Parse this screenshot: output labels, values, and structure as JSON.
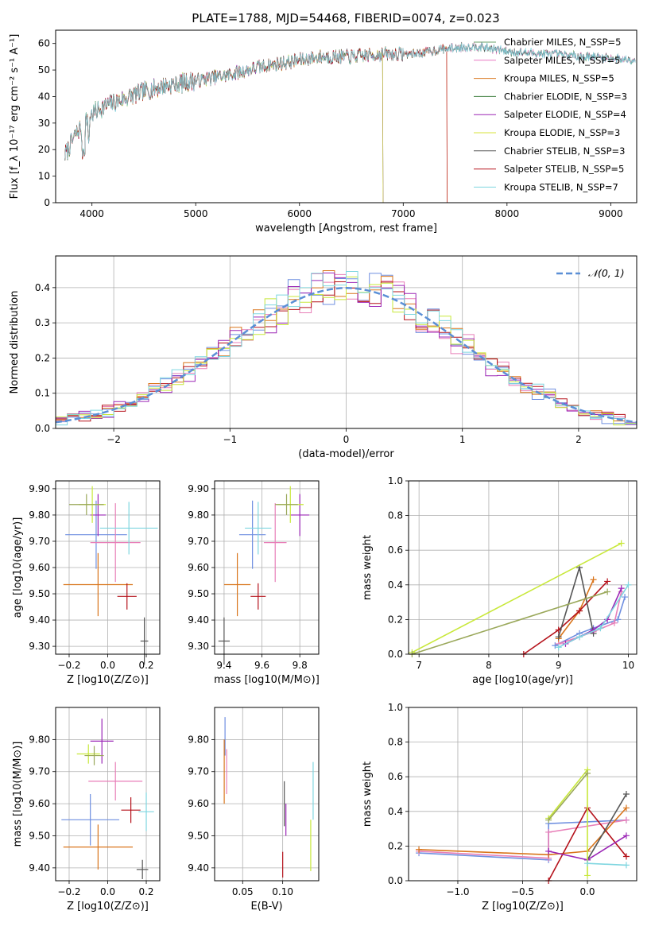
{
  "figure": {
    "title": "PLATE=1788, MJD=54468, FIBERID=0074, z=0.023"
  },
  "colors": {
    "grid": "#b0b0b0",
    "dashed_fit": "#5b8fd6",
    "series": [
      "#6aa26a",
      "#e879c2",
      "#d9751c",
      "#3f7f3f",
      "#9b26b6",
      "#d7e33a",
      "#555555",
      "#b5121b",
      "#7fd6e0"
    ],
    "range_markers": [
      "#6f8fe0",
      "#e87fb8",
      "#d9751c",
      "#b5121b",
      "#555555",
      "#9b26b6",
      "#c8e83a",
      "#7fd6e0",
      "#9aa85a"
    ]
  },
  "chart_data": [
    {
      "id": "spectrum",
      "type": "line",
      "title": "PLATE=1788, MJD=54468, FIBERID=0074, z=0.023",
      "xlabel": "wavelength [Angstrom, rest frame]",
      "ylabel": "Flux [f_λ 10⁻¹⁷ erg cm⁻² s⁻¹ A⁻¹]",
      "xlim": [
        3650,
        9250
      ],
      "ylim": [
        0,
        65
      ],
      "xticks": [
        4000,
        5000,
        6000,
        7000,
        8000,
        9000
      ],
      "yticks": [
        0,
        10,
        20,
        30,
        40,
        50,
        60
      ],
      "grid": false,
      "legend_position": "upper-right",
      "continuum": {
        "x": [
          3740,
          3850,
          3950,
          4100,
          4300,
          4500,
          4700,
          5000,
          5300,
          5600,
          5900,
          6200,
          6500,
          6800,
          7100,
          7400,
          7700,
          8000,
          8400,
          8800,
          9200
        ],
        "y": [
          18,
          26,
          32,
          36,
          39,
          42,
          44,
          46,
          48,
          51,
          53,
          55,
          55,
          56,
          56,
          58,
          59,
          57,
          56,
          55,
          54
        ]
      },
      "series": [
        {
          "name": "Chabrier MILES, N_SSP=5",
          "cutoff": null
        },
        {
          "name": "Salpeter MILES, N_SSP=5",
          "cutoff": null
        },
        {
          "name": "Kroupa MILES, N_SSP=5",
          "cutoff": 7420
        },
        {
          "name": "Chabrier ELODIE, N_SSP=3",
          "cutoff": 6800
        },
        {
          "name": "Salpeter ELODIE, N_SSP=4",
          "cutoff": 6800
        },
        {
          "name": "Kroupa ELODIE, N_SSP=3",
          "cutoff": 6800
        },
        {
          "name": "Chabrier STELIB, N_SSP=3",
          "cutoff": null
        },
        {
          "name": "Salpeter STELIB, N_SSP=5",
          "cutoff": 7420
        },
        {
          "name": "Kroupa STELIB, N_SSP=7",
          "cutoff": null
        }
      ]
    },
    {
      "id": "residuals",
      "type": "histogram",
      "xlabel": "(data-model)/error",
      "ylabel": "Normed distribution",
      "xlim": [
        -2.5,
        2.5
      ],
      "ylim": [
        0,
        0.49
      ],
      "xticks": [
        -2,
        -1,
        0,
        1,
        2
      ],
      "yticks": [
        0.0,
        0.1,
        0.2,
        0.3,
        0.4
      ],
      "grid": true,
      "bin_width": 0.1,
      "reference_curve": {
        "name": "𝒩(0, 1)",
        "style": "dashed"
      },
      "legend_position": "upper-right"
    },
    {
      "id": "age_vs_Z",
      "type": "errorbar",
      "xlabel": "Z [log10(Z/Z⊙)]",
      "ylabel": "age  [log10(age/yr)]",
      "xlim": [
        -0.27,
        0.27
      ],
      "ylim": [
        9.27,
        9.93
      ],
      "xticks": [
        -0.2,
        0.0,
        0.2
      ],
      "yticks": [
        9.3,
        9.4,
        9.5,
        9.6,
        9.7,
        9.8,
        9.9
      ],
      "grid": true,
      "points": [
        {
          "x": -0.06,
          "y": 9.725,
          "xerr": 0.16,
          "yerr": 0.13
        },
        {
          "x": 0.04,
          "y": 9.695,
          "xerr": 0.13,
          "yerr": 0.15
        },
        {
          "x": -0.05,
          "y": 9.535,
          "xerr": 0.18,
          "yerr": 0.12
        },
        {
          "x": 0.1,
          "y": 9.49,
          "xerr": 0.05,
          "yerr": 0.05
        },
        {
          "x": 0.19,
          "y": 9.32,
          "xerr": 0.02,
          "yerr": 0.09
        },
        {
          "x": -0.05,
          "y": 9.8,
          "xerr": 0.04,
          "yerr": 0.08
        },
        {
          "x": -0.08,
          "y": 9.84,
          "xerr": 0.07,
          "yerr": 0.07
        },
        {
          "x": 0.11,
          "y": 9.75,
          "xerr": 0.15,
          "yerr": 0.1
        },
        {
          "x": -0.11,
          "y": 9.84,
          "xerr": 0.09,
          "yerr": 0.04
        }
      ]
    },
    {
      "id": "age_vs_mass",
      "type": "errorbar",
      "xlabel": "mass [log10(M/M⊙)]",
      "ylabel": "",
      "xlim": [
        9.35,
        9.9
      ],
      "ylim": [
        9.27,
        9.93
      ],
      "xticks": [
        9.4,
        9.6,
        9.8
      ],
      "yticks": [
        9.3,
        9.4,
        9.5,
        9.6,
        9.7,
        9.8,
        9.9
      ],
      "grid": true,
      "points": [
        {
          "x": 9.55,
          "y": 9.725,
          "xerr": 0.07,
          "yerr": 0.13
        },
        {
          "x": 9.67,
          "y": 9.695,
          "xerr": 0.06,
          "yerr": 0.15
        },
        {
          "x": 9.47,
          "y": 9.535,
          "xerr": 0.07,
          "yerr": 0.12
        },
        {
          "x": 9.58,
          "y": 9.49,
          "xerr": 0.04,
          "yerr": 0.05
        },
        {
          "x": 9.4,
          "y": 9.32,
          "xerr": 0.03,
          "yerr": 0.09
        },
        {
          "x": 9.8,
          "y": 9.8,
          "xerr": 0.05,
          "yerr": 0.08
        },
        {
          "x": 9.75,
          "y": 9.84,
          "xerr": 0.07,
          "yerr": 0.07
        },
        {
          "x": 9.58,
          "y": 9.75,
          "xerr": 0.07,
          "yerr": 0.1
        },
        {
          "x": 9.73,
          "y": 9.84,
          "xerr": 0.06,
          "yerr": 0.04
        }
      ]
    },
    {
      "id": "mass_weight_vs_age",
      "type": "line",
      "xlabel": "age  [log10(age/yr)]",
      "ylabel": "mass weight",
      "xlim": [
        6.85,
        10.12
      ],
      "ylim": [
        0,
        1.0
      ],
      "xticks": [
        7,
        8,
        9,
        10
      ],
      "yticks": [
        0.0,
        0.2,
        0.4,
        0.6,
        0.8,
        1.0
      ],
      "grid": true,
      "series": [
        {
          "x": [
            8.95,
            9.3,
            9.5,
            9.85,
            9.95
          ],
          "y": [
            0.05,
            0.12,
            0.15,
            0.2,
            0.33
          ]
        },
        {
          "x": [
            9.0,
            9.3,
            9.5,
            9.8,
            9.9
          ],
          "y": [
            0.06,
            0.1,
            0.13,
            0.18,
            0.36
          ]
        },
        {
          "x": [
            9.0,
            9.3,
            9.5
          ],
          "y": [
            0.09,
            0.25,
            0.43
          ]
        },
        {
          "x": [
            8.5,
            9.0,
            9.3,
            9.7
          ],
          "y": [
            0.0,
            0.14,
            0.25,
            0.42
          ]
        },
        {
          "x": [
            9.0,
            9.3,
            9.5
          ],
          "y": [
            0.1,
            0.5,
            0.12
          ]
        },
        {
          "x": [
            9.1,
            9.5,
            9.7,
            9.9
          ],
          "y": [
            0.06,
            0.14,
            0.2,
            0.38
          ]
        },
        {
          "x": [
            6.9,
            9.9
          ],
          "y": [
            0.01,
            0.64
          ]
        },
        {
          "x": [
            9.0,
            9.3,
            9.6,
            10.0
          ],
          "y": [
            0.04,
            0.1,
            0.15,
            0.4
          ]
        },
        {
          "x": [
            6.9,
            9.7
          ],
          "y": [
            0.0,
            0.36
          ]
        }
      ]
    },
    {
      "id": "mass_vs_Z",
      "type": "errorbar",
      "xlabel": "Z [log10(Z/Z⊙)]",
      "ylabel": "mass [log10(M/M⊙)]",
      "xlim": [
        -0.27,
        0.27
      ],
      "ylim": [
        9.36,
        9.9
      ],
      "xticks": [
        -0.2,
        0.0,
        0.2
      ],
      "yticks": [
        9.4,
        9.5,
        9.6,
        9.7,
        9.8
      ],
      "grid": true,
      "points": [
        {
          "x": -0.09,
          "y": 9.55,
          "xerr": 0.15,
          "yerr": 0.08
        },
        {
          "x": 0.04,
          "y": 9.67,
          "xerr": 0.14,
          "yerr": 0.06
        },
        {
          "x": -0.05,
          "y": 9.465,
          "xerr": 0.18,
          "yerr": 0.07
        },
        {
          "x": 0.12,
          "y": 9.58,
          "xerr": 0.05,
          "yerr": 0.04
        },
        {
          "x": 0.18,
          "y": 9.395,
          "xerr": 0.03,
          "yerr": 0.03
        },
        {
          "x": -0.03,
          "y": 9.795,
          "xerr": 0.06,
          "yerr": 0.07
        },
        {
          "x": -0.1,
          "y": 9.755,
          "xerr": 0.06,
          "yerr": 0.03
        },
        {
          "x": 0.2,
          "y": 9.575,
          "xerr": 0.04,
          "yerr": 0.06
        },
        {
          "x": -0.07,
          "y": 9.75,
          "xerr": 0.05,
          "yerr": 0.03
        }
      ]
    },
    {
      "id": "mass_vs_ebv",
      "type": "errorbar",
      "xlabel": "E(B-V)",
      "ylabel": "",
      "xlim": [
        0.015,
        0.145
      ],
      "ylim": [
        9.36,
        9.9
      ],
      "xticks": [
        0.05,
        0.1
      ],
      "yticks": [
        9.4,
        9.5,
        9.6,
        9.7,
        9.8
      ],
      "grid": true,
      "points": [
        {
          "x": 0.028,
          "y": 9.81,
          "xerr": 0.0,
          "yerr": 0.06
        },
        {
          "x": 0.03,
          "y": 9.7,
          "xerr": 0.0,
          "yerr": 0.07
        },
        {
          "x": 0.027,
          "y": 9.7,
          "xerr": 0.0,
          "yerr": 0.1
        },
        {
          "x": 0.1,
          "y": 9.41,
          "xerr": 0.0,
          "yerr": 0.04
        },
        {
          "x": 0.102,
          "y": 9.6,
          "xerr": 0.0,
          "yerr": 0.07
        },
        {
          "x": 0.104,
          "y": 9.55,
          "xerr": 0.0,
          "yerr": 0.05
        },
        {
          "x": 0.135,
          "y": 9.47,
          "xerr": 0.0,
          "yerr": 0.08
        },
        {
          "x": 0.138,
          "y": 9.64,
          "xerr": 0.0,
          "yerr": 0.09
        }
      ]
    },
    {
      "id": "mass_weight_vs_Z",
      "type": "line",
      "xlabel": "Z [log10(Z/Z⊙)]",
      "ylabel": "mass weight",
      "xlim": [
        -1.38,
        0.38
      ],
      "ylim": [
        0,
        1.0
      ],
      "xticks": [
        -1.0,
        -0.5,
        0.0
      ],
      "yticks": [
        0.0,
        0.2,
        0.4,
        0.6,
        0.8,
        1.0
      ],
      "grid": true,
      "series": [
        {
          "x": [
            -1.3,
            -0.3,
            -0.3,
            0.0,
            0.3
          ],
          "y": [
            0.16,
            0.12,
            0.33,
            0.34,
            0.35
          ]
        },
        {
          "x": [
            -1.3,
            -0.3,
            -0.3,
            0.3
          ],
          "y": [
            0.17,
            0.13,
            0.28,
            0.35
          ]
        },
        {
          "x": [
            -1.3,
            -0.3,
            0.0,
            0.3
          ],
          "y": [
            0.18,
            0.15,
            0.17,
            0.42
          ]
        },
        {
          "x": [
            -0.3,
            0.0,
            0.3
          ],
          "y": [
            0.0,
            0.42,
            0.14
          ]
        },
        {
          "x": [
            0.0,
            0.3
          ],
          "y": [
            0.12,
            0.5
          ]
        },
        {
          "x": [
            -0.3,
            0.0,
            0.3
          ],
          "y": [
            0.17,
            0.12,
            0.26
          ]
        },
        {
          "x": [
            -0.3,
            0.0,
            0.0
          ],
          "y": [
            0.36,
            0.64,
            0.03
          ]
        },
        {
          "x": [
            0.0,
            0.3
          ],
          "y": [
            0.1,
            0.09
          ]
        },
        {
          "x": [
            -0.3,
            0.0
          ],
          "y": [
            0.35,
            0.62
          ]
        }
      ]
    }
  ]
}
